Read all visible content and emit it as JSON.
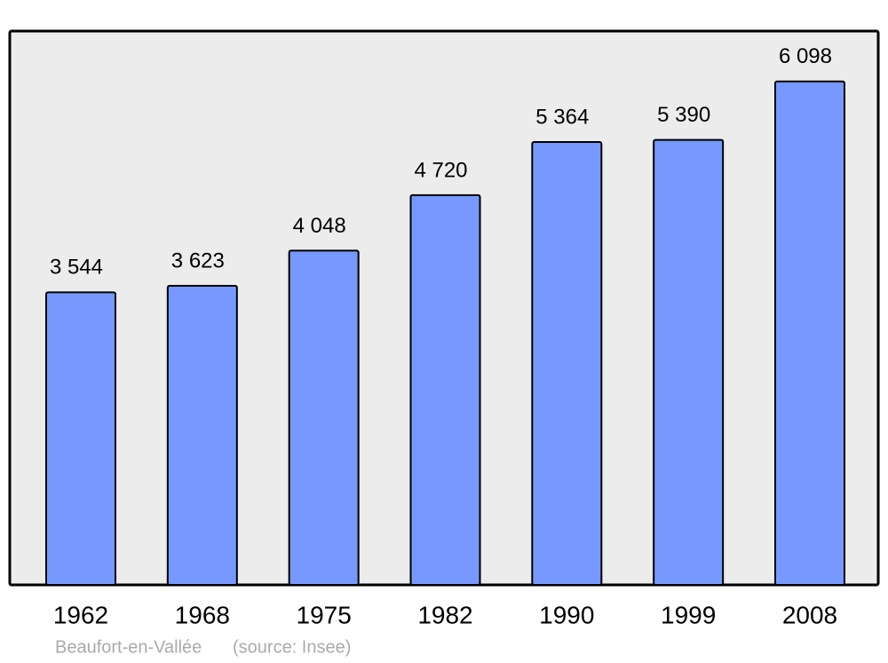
{
  "chart_data": {
    "type": "bar",
    "categories": [
      "1962",
      "1968",
      "1975",
      "1982",
      "1990",
      "1999",
      "2008"
    ],
    "values": [
      3544,
      3623,
      4048,
      4720,
      5364,
      5390,
      6098
    ],
    "value_labels": [
      "3 544",
      "3 623",
      "4 048",
      "4 720",
      "5 364",
      "5 390",
      "6 098"
    ],
    "color": "#7799ff",
    "caption": "Beaufort-en-Vallée",
    "source": "(source: Insee)"
  }
}
